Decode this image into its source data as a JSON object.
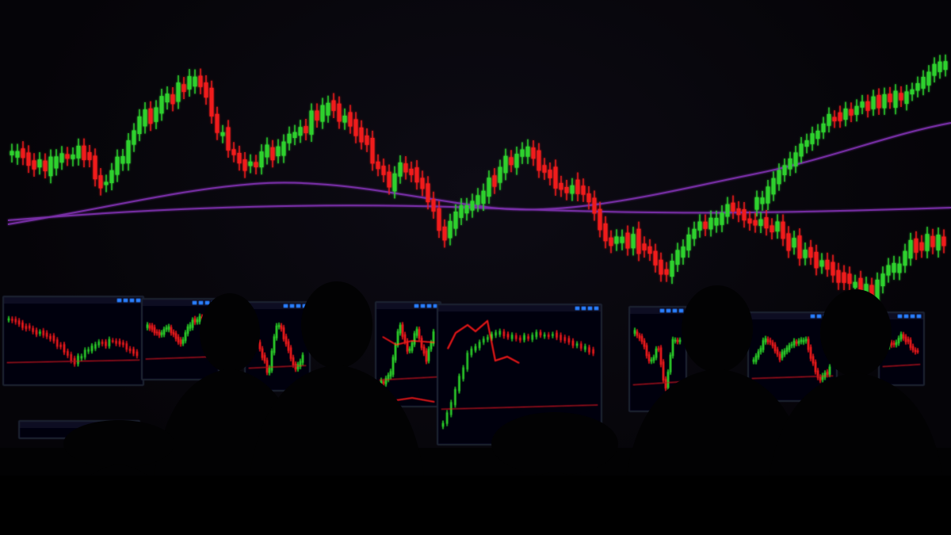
{
  "colors": {
    "background": "#050408",
    "candle_up": "#2fd12f",
    "candle_down": "#f01a1a",
    "moving_average": "#7a2fa8",
    "monitor_frame": "#1a2230",
    "monitor_screen": "#04060c",
    "ui_accent": "#2a7fff",
    "silhouette": "#020203"
  },
  "icons": [
    "candlestick-chart-icon"
  ]
}
